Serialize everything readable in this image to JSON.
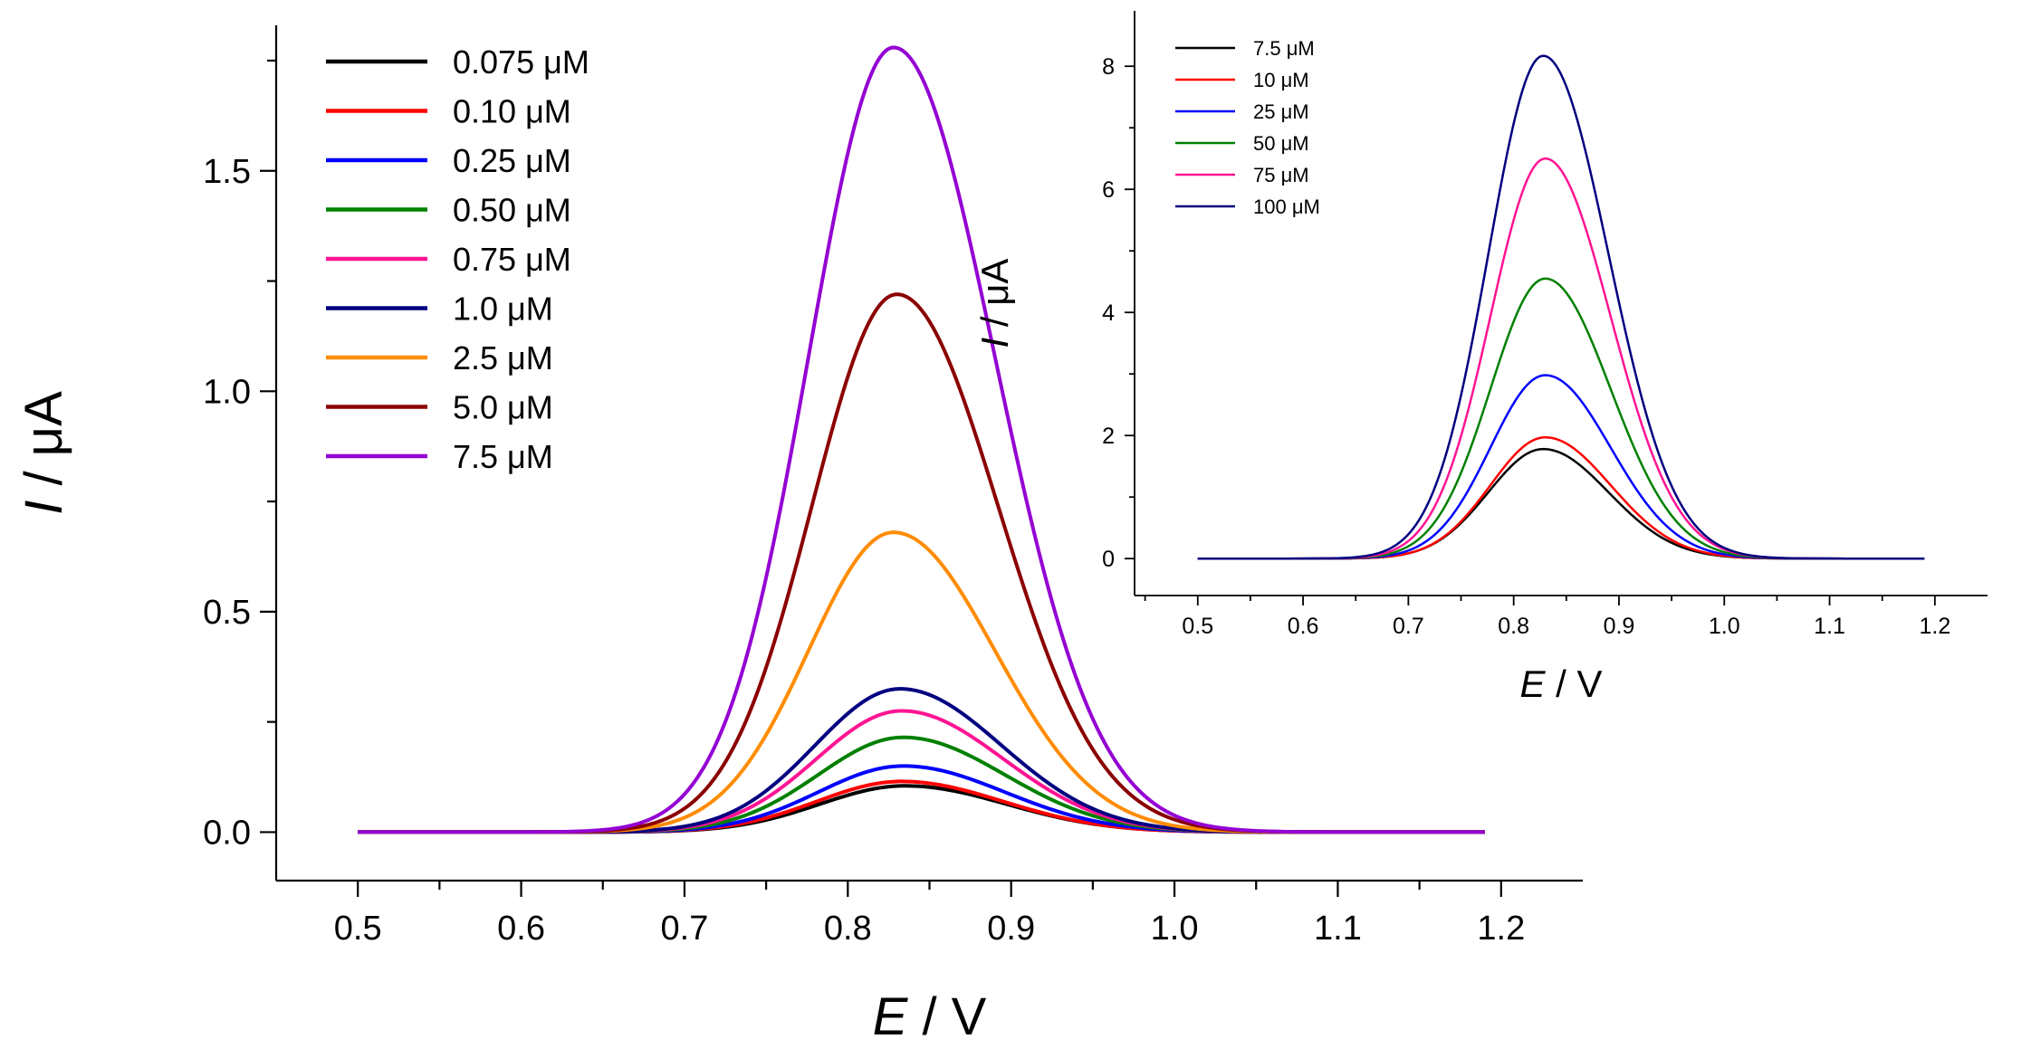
{
  "chart_data": [
    {
      "type": "line",
      "title": "",
      "xlabel": {
        "italic": "E",
        "rest": " / V"
      },
      "ylabel": {
        "italic": "I",
        "rest": " / μA"
      },
      "xlim": [
        0.45,
        1.25
      ],
      "ylim": [
        -0.11,
        1.83
      ],
      "xticks": [
        0.5,
        0.6,
        0.7,
        0.8,
        0.9,
        1.0,
        1.1,
        1.2
      ],
      "xtick_labels": [
        "0.5",
        "0.6",
        "0.7",
        "0.8",
        "0.9",
        "1.0",
        "1.1",
        "1.2"
      ],
      "yticks": [
        0.0,
        0.5,
        1.0,
        1.5
      ],
      "ytick_labels": [
        "0.0",
        "0.5",
        "1.0",
        "1.5"
      ],
      "x_start": 0.5,
      "x_end": 1.19,
      "legend_position": "top-left",
      "series": [
        {
          "name": "0.075 μM",
          "color": "#000000",
          "peak_x": 0.835,
          "peak_y": 0.105
        },
        {
          "name": "0.10 μM",
          "color": "#ff0000",
          "peak_x": 0.833,
          "peak_y": 0.115
        },
        {
          "name": "0.25 μM",
          "color": "#0000ff",
          "peak_x": 0.834,
          "peak_y": 0.15
        },
        {
          "name": "0.50 μM",
          "color": "#008000",
          "peak_x": 0.834,
          "peak_y": 0.215
        },
        {
          "name": "0.75 μM",
          "color": "#ff1493",
          "peak_x": 0.833,
          "peak_y": 0.275
        },
        {
          "name": "1.0 μM",
          "color": "#000080",
          "peak_x": 0.832,
          "peak_y": 0.325
        },
        {
          "name": "2.5 μM",
          "color": "#ff8c00",
          "peak_x": 0.828,
          "peak_y": 0.68
        },
        {
          "name": "5.0 μM",
          "color": "#8b0000",
          "peak_x": 0.83,
          "peak_y": 1.22
        },
        {
          "name": "7.5 μM",
          "color": "#9400d3",
          "peak_x": 0.828,
          "peak_y": 1.78
        }
      ]
    },
    {
      "type": "line",
      "title": "",
      "xlabel": {
        "italic": "E",
        "rest": " / V"
      },
      "ylabel": {
        "italic": "I",
        "rest": " / μA"
      },
      "xlim": [
        0.44,
        1.25
      ],
      "ylim": [
        -0.6,
        8.9
      ],
      "xticks": [
        0.5,
        0.6,
        0.7,
        0.8,
        0.9,
        1.0,
        1.1,
        1.2
      ],
      "xtick_labels": [
        "0.5",
        "0.6",
        "0.7",
        "0.8",
        "0.9",
        "1.0",
        "1.1",
        "1.2"
      ],
      "yticks": [
        0,
        2,
        4,
        6,
        8
      ],
      "ytick_labels": [
        "0",
        "2",
        "4",
        "6",
        "8"
      ],
      "x_start": 0.5,
      "x_end": 1.19,
      "legend_position": "top-left",
      "series": [
        {
          "name": "7.5 μM",
          "color": "#000000",
          "peak_x": 0.828,
          "peak_y": 1.78
        },
        {
          "name": "10 μM",
          "color": "#ff0000",
          "peak_x": 0.83,
          "peak_y": 1.97
        },
        {
          "name": "25 μM",
          "color": "#0000ff",
          "peak_x": 0.83,
          "peak_y": 2.98
        },
        {
          "name": "50 μM",
          "color": "#008000",
          "peak_x": 0.83,
          "peak_y": 4.55
        },
        {
          "name": "75 μM",
          "color": "#ff1493",
          "peak_x": 0.83,
          "peak_y": 6.5
        },
        {
          "name": "100 μM",
          "color": "#000080",
          "peak_x": 0.828,
          "peak_y": 8.17
        }
      ]
    }
  ]
}
